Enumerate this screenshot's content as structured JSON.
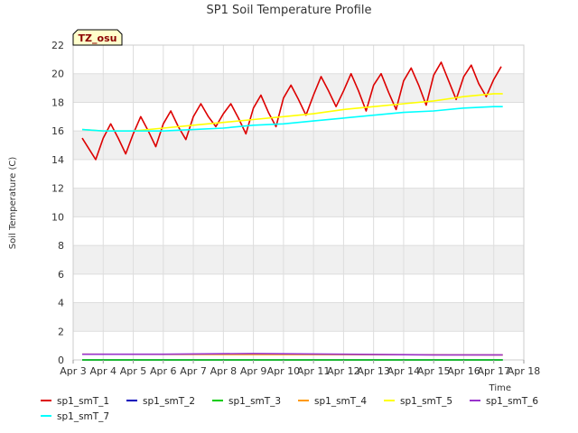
{
  "chart_data": {
    "type": "line",
    "title": "SP1 Soil Temperature Profile",
    "xlabel": "Time",
    "ylabel": "Soil Temperature (C)",
    "annotation": "TZ_osu",
    "xlim": [
      3.0,
      18.0
    ],
    "ylim": [
      0,
      22
    ],
    "x_ticks": [
      3,
      4,
      5,
      6,
      7,
      8,
      9,
      10,
      11,
      12,
      13,
      14,
      15,
      16,
      17,
      18
    ],
    "x_tick_labels": [
      "Apr 3",
      "Apr 4",
      "Apr 5",
      "Apr 6",
      "Apr 7",
      "Apr 8",
      "Apr 9",
      "Apr 10",
      "Apr 11",
      "Apr 12",
      "Apr 13",
      "Apr 14",
      "Apr 15",
      "Apr 16",
      "Apr 17",
      "Apr 18"
    ],
    "y_ticks": [
      0,
      2,
      4,
      6,
      8,
      10,
      12,
      14,
      16,
      18,
      20,
      22
    ],
    "y_tick_labels": [
      "0",
      "2",
      "4",
      "6",
      "8",
      "10",
      "12",
      "14",
      "16",
      "18",
      "20",
      "22"
    ],
    "grid": true,
    "legend_position": "bottom",
    "series": [
      {
        "name": "sp1_smT_1",
        "color": "#dd0000",
        "x": [
          3.3,
          3.75,
          4.0,
          4.25,
          4.5,
          4.75,
          5.0,
          5.25,
          5.5,
          5.75,
          6.0,
          6.25,
          6.5,
          6.75,
          7.0,
          7.25,
          7.5,
          7.75,
          8.0,
          8.25,
          8.5,
          8.75,
          9.0,
          9.25,
          9.5,
          9.75,
          10.0,
          10.25,
          10.5,
          10.75,
          11.0,
          11.25,
          11.5,
          11.75,
          12.0,
          12.25,
          12.5,
          12.75,
          13.0,
          13.25,
          13.5,
          13.75,
          14.0,
          14.25,
          14.5,
          14.75,
          15.0,
          15.25,
          15.5,
          15.75,
          16.0,
          16.25,
          16.5,
          16.75,
          17.0,
          17.25
        ],
        "y": [
          15.5,
          14.0,
          15.5,
          16.5,
          15.5,
          14.4,
          15.8,
          17.0,
          16.0,
          14.9,
          16.5,
          17.4,
          16.3,
          15.4,
          17.0,
          17.9,
          17.0,
          16.3,
          17.2,
          17.9,
          16.9,
          15.8,
          17.6,
          18.5,
          17.3,
          16.3,
          18.3,
          19.2,
          18.2,
          17.1,
          18.5,
          19.8,
          18.8,
          17.7,
          18.8,
          20.0,
          18.8,
          17.4,
          19.2,
          20.0,
          18.7,
          17.5,
          19.5,
          20.4,
          19.2,
          17.8,
          19.9,
          20.8,
          19.5,
          18.2,
          19.8,
          20.6,
          19.3,
          18.4,
          19.6,
          20.5
        ]
      },
      {
        "name": "sp1_smT_2",
        "color": "#0000bb",
        "x": [
          3.3,
          17.3
        ],
        "y": [
          0.0,
          0.0
        ]
      },
      {
        "name": "sp1_smT_3",
        "color": "#00cc00",
        "x": [
          3.3,
          17.3
        ],
        "y": [
          0.0,
          0.0
        ]
      },
      {
        "name": "sp1_smT_4",
        "color": "#ff9900",
        "x": [
          3.3,
          17.3
        ],
        "y": [
          0.4,
          0.35
        ]
      },
      {
        "name": "sp1_smT_5",
        "color": "#ffff00",
        "x": [
          3.3,
          4.0,
          5.0,
          6.0,
          7.0,
          8.0,
          9.0,
          10.0,
          11.0,
          12.0,
          13.0,
          14.0,
          15.0,
          16.0,
          17.0,
          17.3
        ],
        "y": [
          16.1,
          16.0,
          16.0,
          16.2,
          16.4,
          16.6,
          16.8,
          17.0,
          17.2,
          17.5,
          17.7,
          17.9,
          18.1,
          18.4,
          18.6,
          18.6
        ]
      },
      {
        "name": "sp1_smT_6",
        "color": "#9933cc",
        "x": [
          3.3,
          6.0,
          9.0,
          12.0,
          15.0,
          17.3
        ],
        "y": [
          0.4,
          0.4,
          0.45,
          0.4,
          0.35,
          0.35
        ]
      },
      {
        "name": "sp1_smT_7",
        "color": "#00ffff",
        "x": [
          3.3,
          4.0,
          5.0,
          6.0,
          7.0,
          8.0,
          9.0,
          10.0,
          11.0,
          12.0,
          13.0,
          14.0,
          15.0,
          16.0,
          17.0,
          17.3
        ],
        "y": [
          16.1,
          16.0,
          16.0,
          16.0,
          16.1,
          16.2,
          16.4,
          16.5,
          16.7,
          16.9,
          17.1,
          17.3,
          17.4,
          17.6,
          17.7,
          17.7
        ]
      }
    ]
  }
}
